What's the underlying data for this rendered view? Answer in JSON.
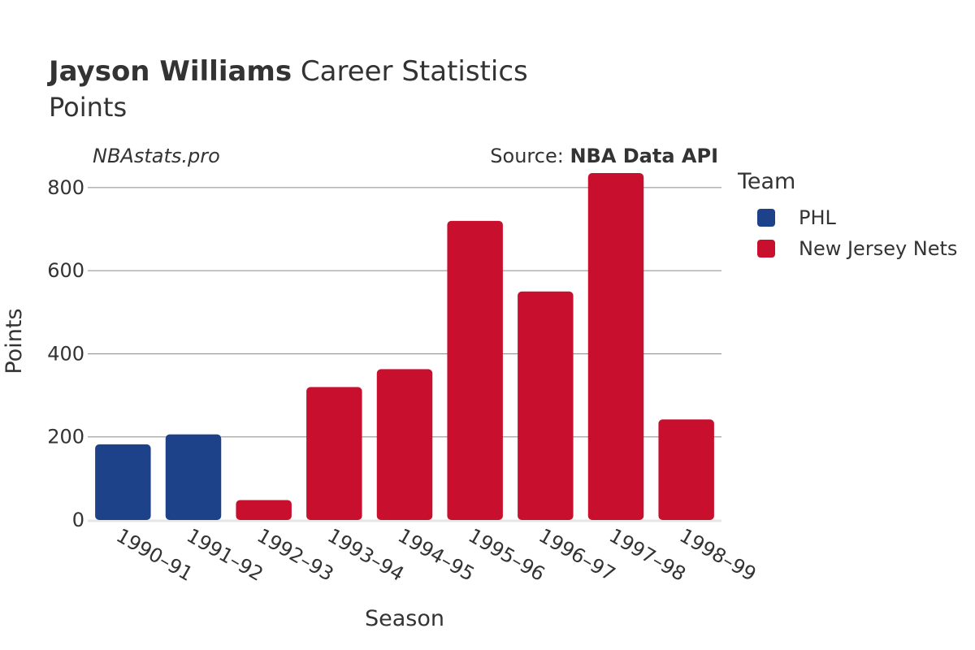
{
  "header": {
    "title_name": "Jayson Williams",
    "title_rest": " Career Statistics",
    "subtitle": "Points",
    "watermark": "NBAstats.pro",
    "source_prefix": "Source: ",
    "source_name": "NBA Data API"
  },
  "legend": {
    "title": "Team",
    "items": [
      {
        "label": "PHL",
        "color": "#1d428a"
      },
      {
        "label": "New Jersey Nets",
        "color": "#c8102e"
      }
    ]
  },
  "chart_data": {
    "type": "bar",
    "title": "Jayson Williams Career Statistics",
    "subtitle": "Points",
    "xlabel": "Season",
    "ylabel": "Points",
    "ylim": [
      0,
      880
    ],
    "yticks": [
      0,
      200,
      400,
      600,
      800
    ],
    "grid": true,
    "legend_position": "right",
    "categories": [
      "1990–91",
      "1991–92",
      "1992–93",
      "1993–94",
      "1994–95",
      "1995–96",
      "1996–97",
      "1997–98",
      "1998–99"
    ],
    "values": [
      182,
      206,
      48,
      320,
      363,
      720,
      550,
      835,
      242
    ],
    "teams": [
      "PHL",
      "PHL",
      "New Jersey Nets",
      "New Jersey Nets",
      "New Jersey Nets",
      "New Jersey Nets",
      "New Jersey Nets",
      "New Jersey Nets",
      "New Jersey Nets"
    ]
  }
}
